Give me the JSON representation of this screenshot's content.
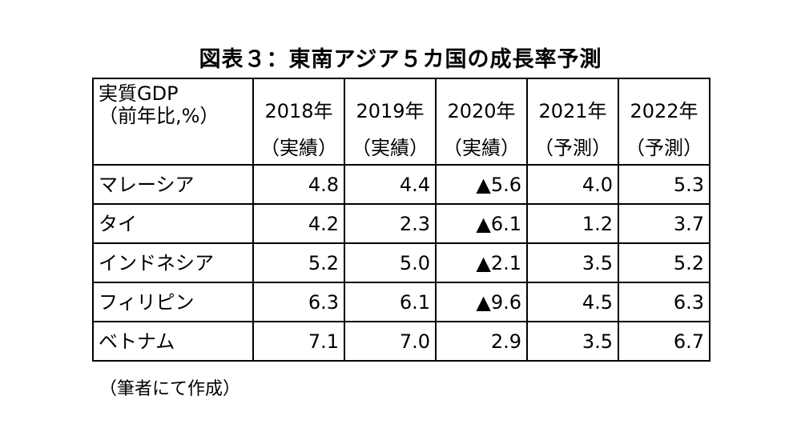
{
  "title": "図表３：東南アジア５カ国の成長率予測",
  "table": {
    "corner": {
      "line1": "実質GDP",
      "line2": "（前年比,%）"
    },
    "columns": [
      {
        "year": "2018年",
        "kind": "（実績）"
      },
      {
        "year": "2019年",
        "kind": "（実績）"
      },
      {
        "year": "2020年",
        "kind": "（実績）"
      },
      {
        "year": "2021年",
        "kind": "（予測）"
      },
      {
        "year": "2022年",
        "kind": "（予測）"
      }
    ],
    "rows": [
      {
        "country": "マレーシア",
        "values": [
          "4.8",
          "4.4",
          "▲5.6",
          "4.0",
          "5.3"
        ]
      },
      {
        "country": "タイ",
        "values": [
          "4.2",
          "2.3",
          "▲6.1",
          "1.2",
          "3.7"
        ]
      },
      {
        "country": "インドネシア",
        "values": [
          "5.2",
          "5.0",
          "▲2.1",
          "3.5",
          "5.2"
        ]
      },
      {
        "country": "フィリピン",
        "values": [
          "6.3",
          "6.1",
          "▲9.6",
          "4.5",
          "6.3"
        ]
      },
      {
        "country": "ベトナム",
        "values": [
          "7.1",
          "7.0",
          "2.9",
          "3.5",
          "6.7"
        ]
      }
    ]
  },
  "source": "（筆者にて作成）"
}
